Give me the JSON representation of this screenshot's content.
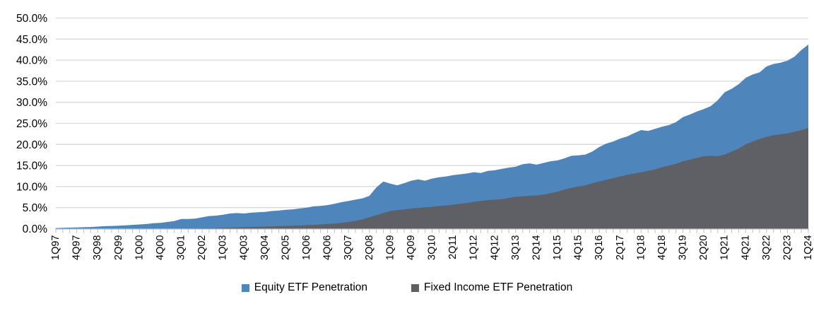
{
  "chart_data": {
    "type": "area",
    "title": "",
    "layout": {
      "legend_position": "bottom-center",
      "grid": "horizontal-on",
      "x_tick_label_rotation_deg": 90,
      "x_labels_shown_every_n_points": 3,
      "series_overlap": "gray series drawn in front of blue series, both filled from zero"
    },
    "y_axis": {
      "min": 0,
      "max": 50,
      "step": 5,
      "tick_labels": [
        "0.0%",
        "5.0%",
        "10.0%",
        "15.0%",
        "20.0%",
        "25.0%",
        "30.0%",
        "35.0%",
        "40.0%",
        "45.0%",
        "50.0%"
      ]
    },
    "colors": {
      "equity_fill": "#4e86bb",
      "fixed_income_fill": "#5f6066",
      "gridline": "#d9d9d9",
      "axis_line": "#bfbfbf",
      "tick_mark": "#bfbfbf",
      "label_text": "#000000"
    },
    "x_categories": [
      "1Q97",
      "2Q97",
      "3Q97",
      "4Q97",
      "1Q98",
      "2Q98",
      "3Q98",
      "4Q98",
      "1Q99",
      "2Q99",
      "3Q99",
      "4Q99",
      "1Q00",
      "2Q00",
      "3Q00",
      "4Q00",
      "1Q01",
      "2Q01",
      "3Q01",
      "4Q01",
      "1Q02",
      "2Q02",
      "3Q02",
      "4Q02",
      "1Q03",
      "2Q03",
      "3Q03",
      "4Q03",
      "1Q04",
      "2Q04",
      "3Q04",
      "4Q04",
      "1Q05",
      "2Q05",
      "3Q05",
      "4Q05",
      "1Q06",
      "2Q06",
      "3Q06",
      "4Q06",
      "1Q07",
      "2Q07",
      "3Q07",
      "4Q07",
      "1Q08",
      "2Q08",
      "3Q08",
      "4Q08",
      "1Q09",
      "2Q09",
      "3Q09",
      "4Q09",
      "1Q10",
      "2Q10",
      "3Q10",
      "4Q10",
      "1Q11",
      "2Q11",
      "3Q11",
      "4Q11",
      "1Q12",
      "2Q12",
      "3Q12",
      "4Q12",
      "1Q13",
      "2Q13",
      "3Q13",
      "4Q13",
      "1Q14",
      "2Q14",
      "3Q14",
      "4Q14",
      "1Q15",
      "2Q15",
      "3Q15",
      "4Q15",
      "1Q16",
      "2Q16",
      "3Q16",
      "4Q16",
      "1Q17",
      "2Q17",
      "3Q17",
      "4Q17",
      "1Q18",
      "2Q18",
      "3Q18",
      "4Q18",
      "1Q19",
      "2Q19",
      "3Q19",
      "4Q19",
      "1Q20",
      "2Q20",
      "3Q20",
      "4Q20",
      "1Q21",
      "2Q21",
      "3Q21",
      "4Q21",
      "1Q22",
      "2Q22",
      "3Q22",
      "4Q22",
      "1Q23",
      "2Q23",
      "3Q23",
      "4Q23",
      "1Q24"
    ],
    "series": [
      {
        "name": "Equity ETF Penetration",
        "color": "#4e86bb",
        "values": [
          0.15,
          0.2,
          0.25,
          0.3,
          0.35,
          0.4,
          0.5,
          0.6,
          0.65,
          0.7,
          0.8,
          0.9,
          1.0,
          1.1,
          1.3,
          1.4,
          1.6,
          1.8,
          2.3,
          2.3,
          2.4,
          2.7,
          3.0,
          3.1,
          3.3,
          3.6,
          3.7,
          3.6,
          3.8,
          3.9,
          4.0,
          4.2,
          4.3,
          4.5,
          4.6,
          4.8,
          5.0,
          5.3,
          5.4,
          5.6,
          5.9,
          6.3,
          6.6,
          6.9,
          7.2,
          7.8,
          9.8,
          11.2,
          10.7,
          10.3,
          10.8,
          11.4,
          11.7,
          11.4,
          11.9,
          12.2,
          12.4,
          12.7,
          12.9,
          13.1,
          13.4,
          13.2,
          13.7,
          13.9,
          14.2,
          14.5,
          14.7,
          15.3,
          15.5,
          15.2,
          15.6,
          16.0,
          16.2,
          16.7,
          17.3,
          17.4,
          17.6,
          18.3,
          19.4,
          20.2,
          20.7,
          21.4,
          21.9,
          22.7,
          23.4,
          23.2,
          23.7,
          24.2,
          24.6,
          25.3,
          26.5,
          27.1,
          27.8,
          28.4,
          29.1,
          30.5,
          32.4,
          33.2,
          34.3,
          35.8,
          36.6,
          37.1,
          38.5,
          39.1,
          39.4,
          39.9,
          40.8,
          42.4,
          43.7
        ]
      },
      {
        "name": "Fixed Income ETF Penetration",
        "color": "#5f6066",
        "values": [
          0,
          0,
          0,
          0,
          0,
          0,
          0,
          0,
          0,
          0,
          0,
          0,
          0,
          0,
          0,
          0,
          0,
          0,
          0.05,
          0.05,
          0.05,
          0.1,
          0.1,
          0.15,
          0.2,
          0.25,
          0.3,
          0.35,
          0.4,
          0.45,
          0.5,
          0.55,
          0.6,
          0.65,
          0.7,
          0.75,
          0.85,
          0.9,
          1.0,
          1.1,
          1.2,
          1.4,
          1.6,
          1.9,
          2.2,
          2.7,
          3.2,
          3.7,
          4.2,
          4.4,
          4.6,
          4.8,
          4.9,
          5.1,
          5.2,
          5.4,
          5.5,
          5.7,
          5.9,
          6.1,
          6.4,
          6.6,
          6.8,
          6.9,
          7.0,
          7.3,
          7.6,
          7.7,
          7.8,
          7.9,
          8.1,
          8.4,
          8.8,
          9.3,
          9.7,
          10.0,
          10.3,
          10.8,
          11.2,
          11.6,
          12.0,
          12.4,
          12.8,
          13.1,
          13.4,
          13.7,
          14.1,
          14.6,
          15.0,
          15.4,
          16.0,
          16.4,
          16.8,
          17.2,
          17.3,
          17.2,
          17.6,
          18.3,
          19.0,
          20.0,
          20.7,
          21.3,
          21.8,
          22.2,
          22.4,
          22.6,
          23.0,
          23.4,
          23.9
        ]
      }
    ]
  },
  "legend": {
    "items": [
      {
        "label": "Equity ETF Penetration",
        "color": "#4e86bb"
      },
      {
        "label": "Fixed Income ETF Penetration",
        "color": "#5f6066"
      }
    ]
  }
}
